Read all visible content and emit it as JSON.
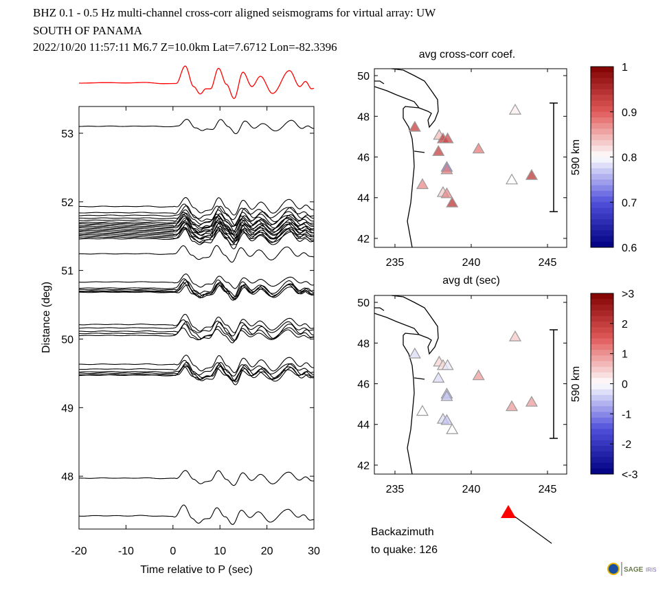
{
  "header": {
    "line1": "BHZ  0.1 - 0.5 Hz  multi-channel cross-corr aligned seismograms for virtual array: UW",
    "line2": "SOUTH OF PANAMA",
    "line3": "2022/10/20  11:57:11  M6.7  Z=10.0km Lat=7.6712 Lon=-82.3396"
  },
  "chart_data": [
    {
      "type": "line",
      "name": "record-section",
      "xlabel": "Time relative to P (sec)",
      "ylabel": "Distance (deg)",
      "xlim": [
        -20,
        30
      ],
      "ylim": [
        47.23,
        53.39
      ],
      "xticks": [
        -20,
        -10,
        0,
        10,
        20,
        30
      ],
      "yticks": [
        48,
        49,
        50,
        51,
        52,
        53
      ],
      "stack_color": "#ff0000",
      "trace_color": "#000000",
      "stack": {
        "t": [
          -20,
          -14,
          -10,
          -6,
          -2,
          0.7,
          2.6,
          4.4,
          5.8,
          7.0,
          8.0,
          9.7,
          11.4,
          13.0,
          14.9,
          16.8,
          18.6,
          21.2,
          24.8,
          27.0,
          28.2,
          29.5,
          30
        ],
        "amp": [
          0,
          0.03,
          0.01,
          0.04,
          -0.03,
          -0.02,
          1.0,
          -0.2,
          -0.63,
          -0.33,
          -0.33,
          0.87,
          -0.07,
          -0.9,
          0.64,
          -0.2,
          0.4,
          -0.6,
          0.73,
          -0.2,
          0.1,
          -0.33,
          -0.3
        ]
      },
      "trace_distances": [
        53.1,
        51.93,
        51.84,
        51.8,
        51.76,
        51.73,
        51.7,
        51.68,
        51.66,
        51.64,
        51.62,
        51.6,
        51.58,
        51.56,
        51.54,
        51.52,
        51.5,
        51.48,
        51.46,
        51.24,
        50.83,
        50.74,
        50.72,
        50.7,
        50.69,
        50.68,
        50.21,
        50.16,
        50.11,
        50.08,
        50.05,
        49.63,
        49.56,
        49.52,
        49.5,
        49.48,
        49.47,
        47.97,
        47.42
      ]
    },
    {
      "type": "scatter",
      "name": "map-cross-corr",
      "title": "avg cross-corr coef.",
      "xlim": [
        233.65,
        246.26
      ],
      "ylim": [
        41.56,
        50.34
      ],
      "xticks": [
        235,
        240,
        245
      ],
      "yticks": [
        42,
        44,
        46,
        48,
        50
      ],
      "colorbar": {
        "range": [
          0.6,
          1
        ],
        "labels": [
          "1",
          "0.9",
          "0.8",
          "0.7",
          "0.6"
        ]
      },
      "scale_bar": "590 km",
      "value_key": "cc"
    },
    {
      "type": "scatter",
      "name": "map-dt",
      "title": "avg dt (sec)",
      "xlim": [
        233.65,
        246.26
      ],
      "ylim": [
        41.56,
        50.34
      ],
      "xticks": [
        235,
        240,
        245
      ],
      "yticks": [
        42,
        44,
        46,
        48,
        50
      ],
      "colorbar": {
        "range": [
          -3,
          3
        ],
        "labels": [
          ">3",
          "2",
          "1",
          "0",
          "-1",
          "-2",
          "<-3"
        ]
      },
      "scale_bar": "590 km",
      "value_key": "dt"
    }
  ],
  "stations": [
    {
      "lon": 236.3,
      "lat": 47.47,
      "cc": 0.93,
      "dt": -0.3
    },
    {
      "lon": 236.8,
      "lat": 44.65,
      "cc": 0.87,
      "dt": 0.0
    },
    {
      "lon": 237.9,
      "lat": 47.07,
      "cc": 0.84,
      "dt": 0.4
    },
    {
      "lon": 238.15,
      "lat": 46.9,
      "cc": 0.93,
      "dt": 0.3
    },
    {
      "lon": 238.45,
      "lat": 46.9,
      "cc": 0.92,
      "dt": -0.2
    },
    {
      "lon": 237.85,
      "lat": 46.28,
      "cc": 0.93,
      "dt": -0.3
    },
    {
      "lon": 238.4,
      "lat": 45.5,
      "cc": 0.72,
      "dt": -0.6
    },
    {
      "lon": 238.4,
      "lat": 45.38,
      "cc": 0.88,
      "dt": -0.5
    },
    {
      "lon": 238.15,
      "lat": 44.26,
      "cc": 0.83,
      "dt": -0.3
    },
    {
      "lon": 238.4,
      "lat": 44.2,
      "cc": 0.87,
      "dt": -0.5
    },
    {
      "lon": 238.75,
      "lat": 43.75,
      "cc": 0.94,
      "dt": 0.0
    },
    {
      "lon": 240.48,
      "lat": 46.4,
      "cc": 0.88,
      "dt": 0.9
    },
    {
      "lon": 242.88,
      "lat": 48.31,
      "cc": 0.81,
      "dt": 0.5
    },
    {
      "lon": 242.66,
      "lat": 44.88,
      "cc": 0.8,
      "dt": 0.9
    },
    {
      "lon": 243.96,
      "lat": 45.1,
      "cc": 0.94,
      "dt": 0.9
    }
  ],
  "backazimuth": {
    "label": "Backazimuth",
    "value_label": "to quake:  126",
    "degrees": 126,
    "color": "#ff0000"
  },
  "logo": {
    "text": "SAGE",
    "subtext": "IRIS"
  }
}
